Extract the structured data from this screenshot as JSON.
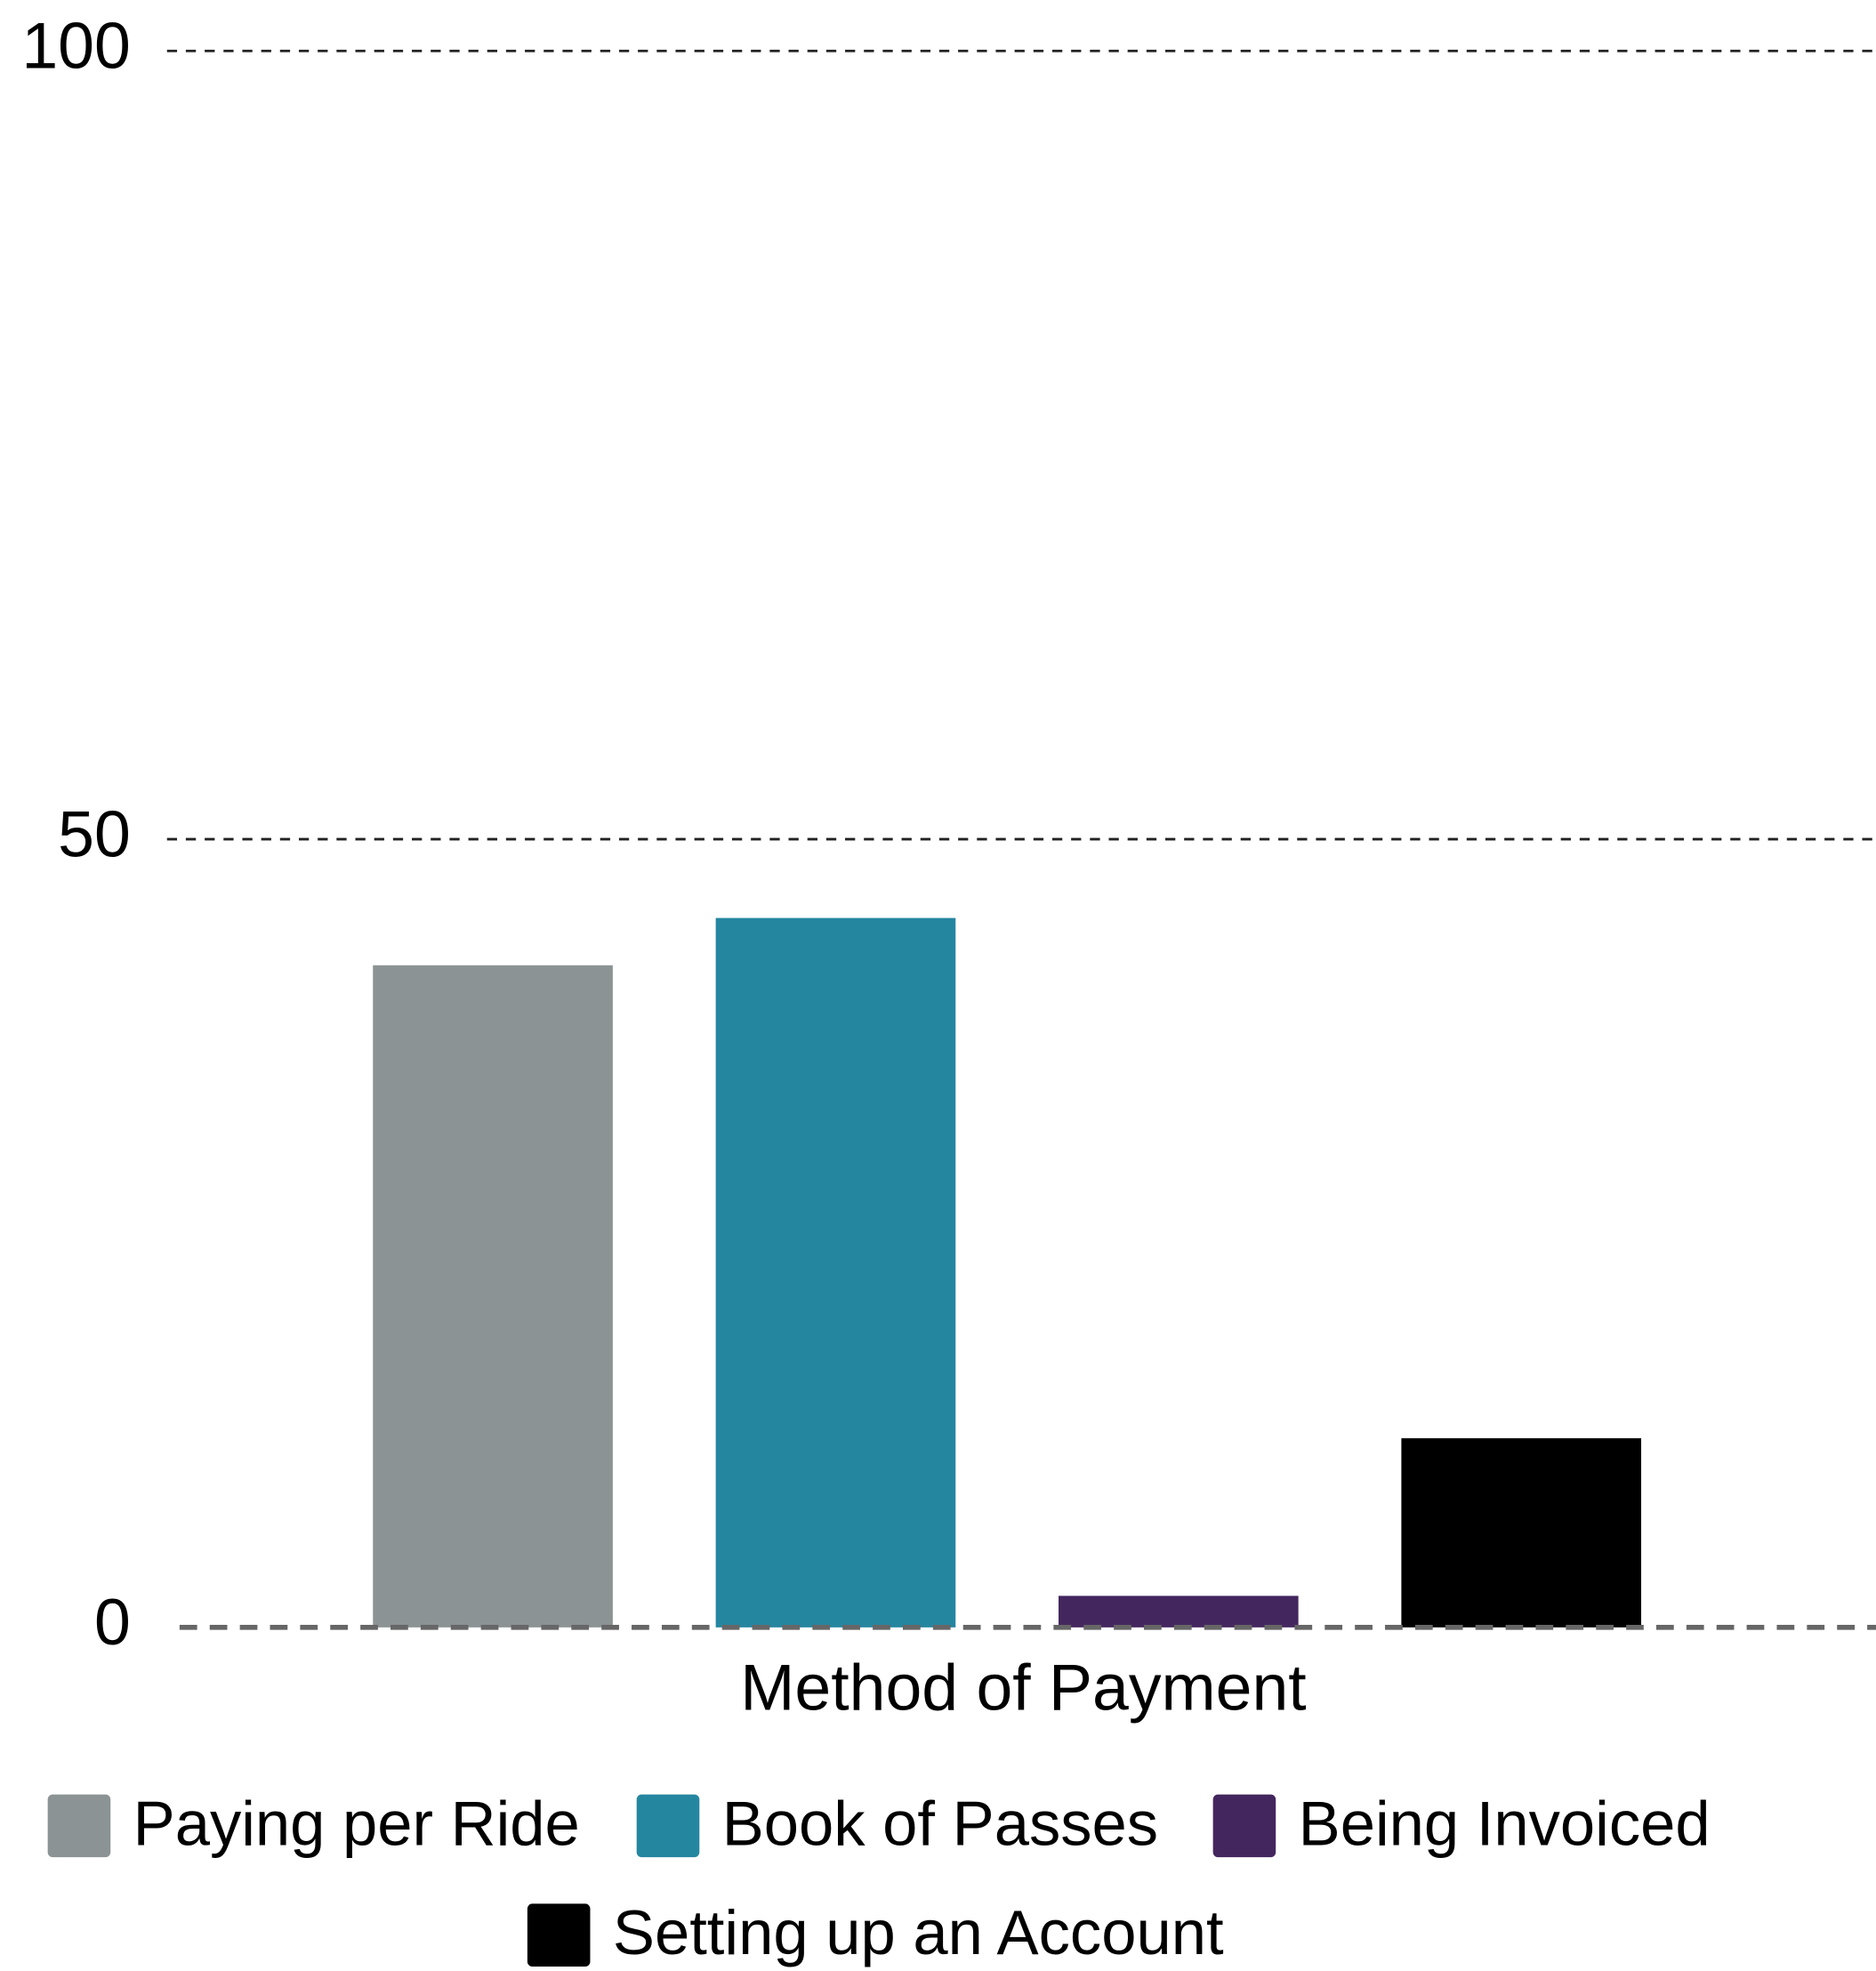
{
  "chart_data": {
    "type": "bar",
    "categories": [
      "Method of Payment"
    ],
    "series": [
      {
        "name": "Paying per Ride",
        "color": "#8c9394",
        "values": [
          42
        ]
      },
      {
        "name": "Book of Passes",
        "color": "#2586a0",
        "values": [
          45
        ]
      },
      {
        "name": "Being Invoiced",
        "color": "#44265e",
        "values": [
          2
        ]
      },
      {
        "name": "Setting up an Account",
        "color": "#000000",
        "values": [
          12
        ]
      }
    ],
    "ylim": [
      0,
      100
    ],
    "yticks": [
      0,
      50,
      100
    ],
    "grid": true,
    "legend": "bottom"
  }
}
